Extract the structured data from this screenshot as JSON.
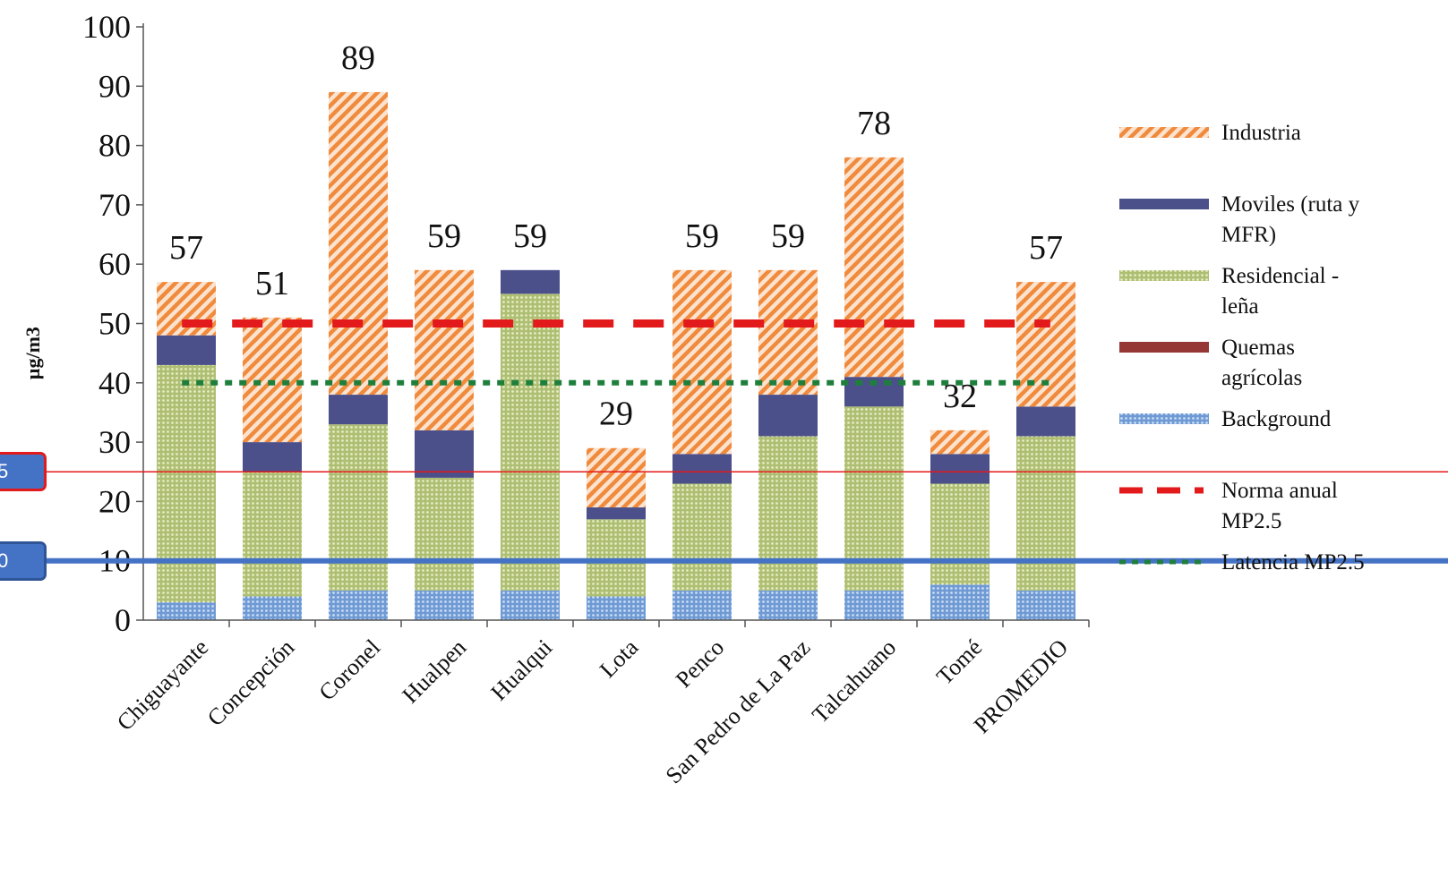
{
  "chart_data": {
    "type": "bar",
    "stacked": true,
    "ylabel": "µg/m3",
    "ylim": [
      0,
      100
    ],
    "yticks": [
      0,
      10,
      20,
      30,
      40,
      50,
      60,
      70,
      80,
      90,
      100
    ],
    "categories": [
      "Chiguayante",
      "Concepción",
      "Coronel",
      "Hualpen",
      "Hualqui",
      "Lota",
      "Penco",
      "San Pedro de La Paz",
      "Talcahuano",
      "Tomé",
      "PROMEDIO"
    ],
    "totals": [
      57,
      51,
      89,
      59,
      59,
      29,
      59,
      59,
      78,
      32,
      57
    ],
    "series": [
      {
        "name": "Background",
        "color": "#8db3e2",
        "values": [
          3,
          4,
          5,
          5,
          5,
          4,
          5,
          5,
          5,
          6,
          5
        ]
      },
      {
        "name": "Residencial - leña",
        "color": "#c4d79b",
        "values": [
          40,
          21,
          28,
          19,
          50,
          13,
          18,
          26,
          31,
          17,
          26
        ]
      },
      {
        "name": "Quemas agrícolas",
        "color": "#953735",
        "values": [
          0,
          0,
          0,
          0,
          0,
          0,
          0,
          0,
          0,
          0,
          0
        ]
      },
      {
        "name": "Moviles (ruta y MFR)",
        "color": "#4b4f8a",
        "values": [
          5,
          5,
          5,
          8,
          4,
          2,
          5,
          7,
          5,
          5,
          5
        ]
      },
      {
        "name": "Industria",
        "color": "#f5a45d",
        "values": [
          9,
          21,
          51,
          27,
          0,
          10,
          31,
          21,
          37,
          4,
          21
        ]
      }
    ],
    "lines": [
      {
        "name": "Norma anual MP2.5",
        "value": 50,
        "color": "#e31a1c",
        "style": "dashed"
      },
      {
        "name": "Latencia MP2.5",
        "value": 40,
        "color": "#1e7f3c",
        "style": "dotted"
      }
    ],
    "legend": {
      "placement": "right",
      "items": [
        {
          "name": "Industria",
          "kind": "hatch",
          "color": "#f5a45d"
        },
        {
          "name": "Moviles (ruta y MFR)",
          "kind": "solid",
          "color": "#4b4f8a"
        },
        {
          "name": "Residencial - leña",
          "kind": "dots",
          "color": "#c4d79b"
        },
        {
          "name": "Quemas agrícolas",
          "kind": "solid",
          "color": "#953735"
        },
        {
          "name": "Background",
          "kind": "dots",
          "color": "#8db3e2"
        },
        {
          "name": "Norma anual MP2.5",
          "kind": "dash",
          "color": "#e31a1c"
        },
        {
          "name": "Latencia MP2.5",
          "kind": "dot",
          "color": "#1e7f3c"
        }
      ]
    }
  },
  "annotations": [
    {
      "label": "5",
      "value": 25,
      "color": "#e31a1c"
    },
    {
      "label": "0",
      "value": 10,
      "color": "#4472c4"
    }
  ]
}
